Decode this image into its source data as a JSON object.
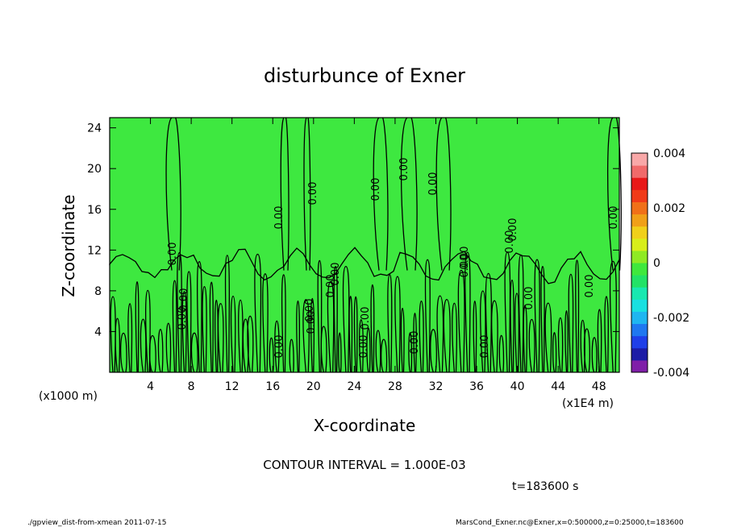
{
  "chart_data": {
    "type": "heatmap",
    "title": "disturbunce of Exner",
    "xlabel": "X-coordinate",
    "ylabel": "Z-coordinate",
    "x_unit": "(x1E4 m)",
    "y_unit": "(x1000 m)",
    "xlim": [
      0,
      50
    ],
    "ylim": [
      0,
      25
    ],
    "x_ticks": [
      "4",
      "8",
      "12",
      "16",
      "20",
      "24",
      "28",
      "32",
      "36",
      "40",
      "44",
      "48"
    ],
    "y_ticks": [
      "4",
      "8",
      "12",
      "16",
      "20",
      "24"
    ],
    "colorbar": {
      "min": -0.004,
      "max": 0.004,
      "tick_labels": [
        "0.004",
        "0.002",
        "0",
        "-0.002",
        "-0.004"
      ],
      "colors": [
        "#7f1fa8",
        "#1c1ca6",
        "#1f3fe8",
        "#1f78f0",
        "#1fb6f0",
        "#19e0e0",
        "#18e8b0",
        "#22e266",
        "#3fe83c",
        "#8fea24",
        "#d8ee1a",
        "#f0d01a",
        "#f0a018",
        "#f07018",
        "#f03a18",
        "#e81818",
        "#f06a6a",
        "#f8a8a8"
      ]
    },
    "field_color": "#3ee840",
    "contour_labels": [
      "0.00",
      "0.00",
      "0.00",
      "0.00",
      "0.00",
      "0.00",
      "0.00",
      "0.00",
      "0.00",
      "0.00",
      "0.00",
      "0.00",
      "0.00",
      "0.00",
      "0.00",
      "0.00",
      "0.00",
      "0.00",
      "0.00",
      "0.00",
      "0.00",
      "0.00",
      "0.00",
      "0.00"
    ]
  },
  "contour_interval": "CONTOUR INTERVAL = 1.000E-03",
  "time": "t=183600 s",
  "footer_left": "./gpview_dist-from-xmean  2011-07-15",
  "footer_right": "MarsCond_Exner.nc@Exner,x=0:500000,z=0:25000,t=183600"
}
